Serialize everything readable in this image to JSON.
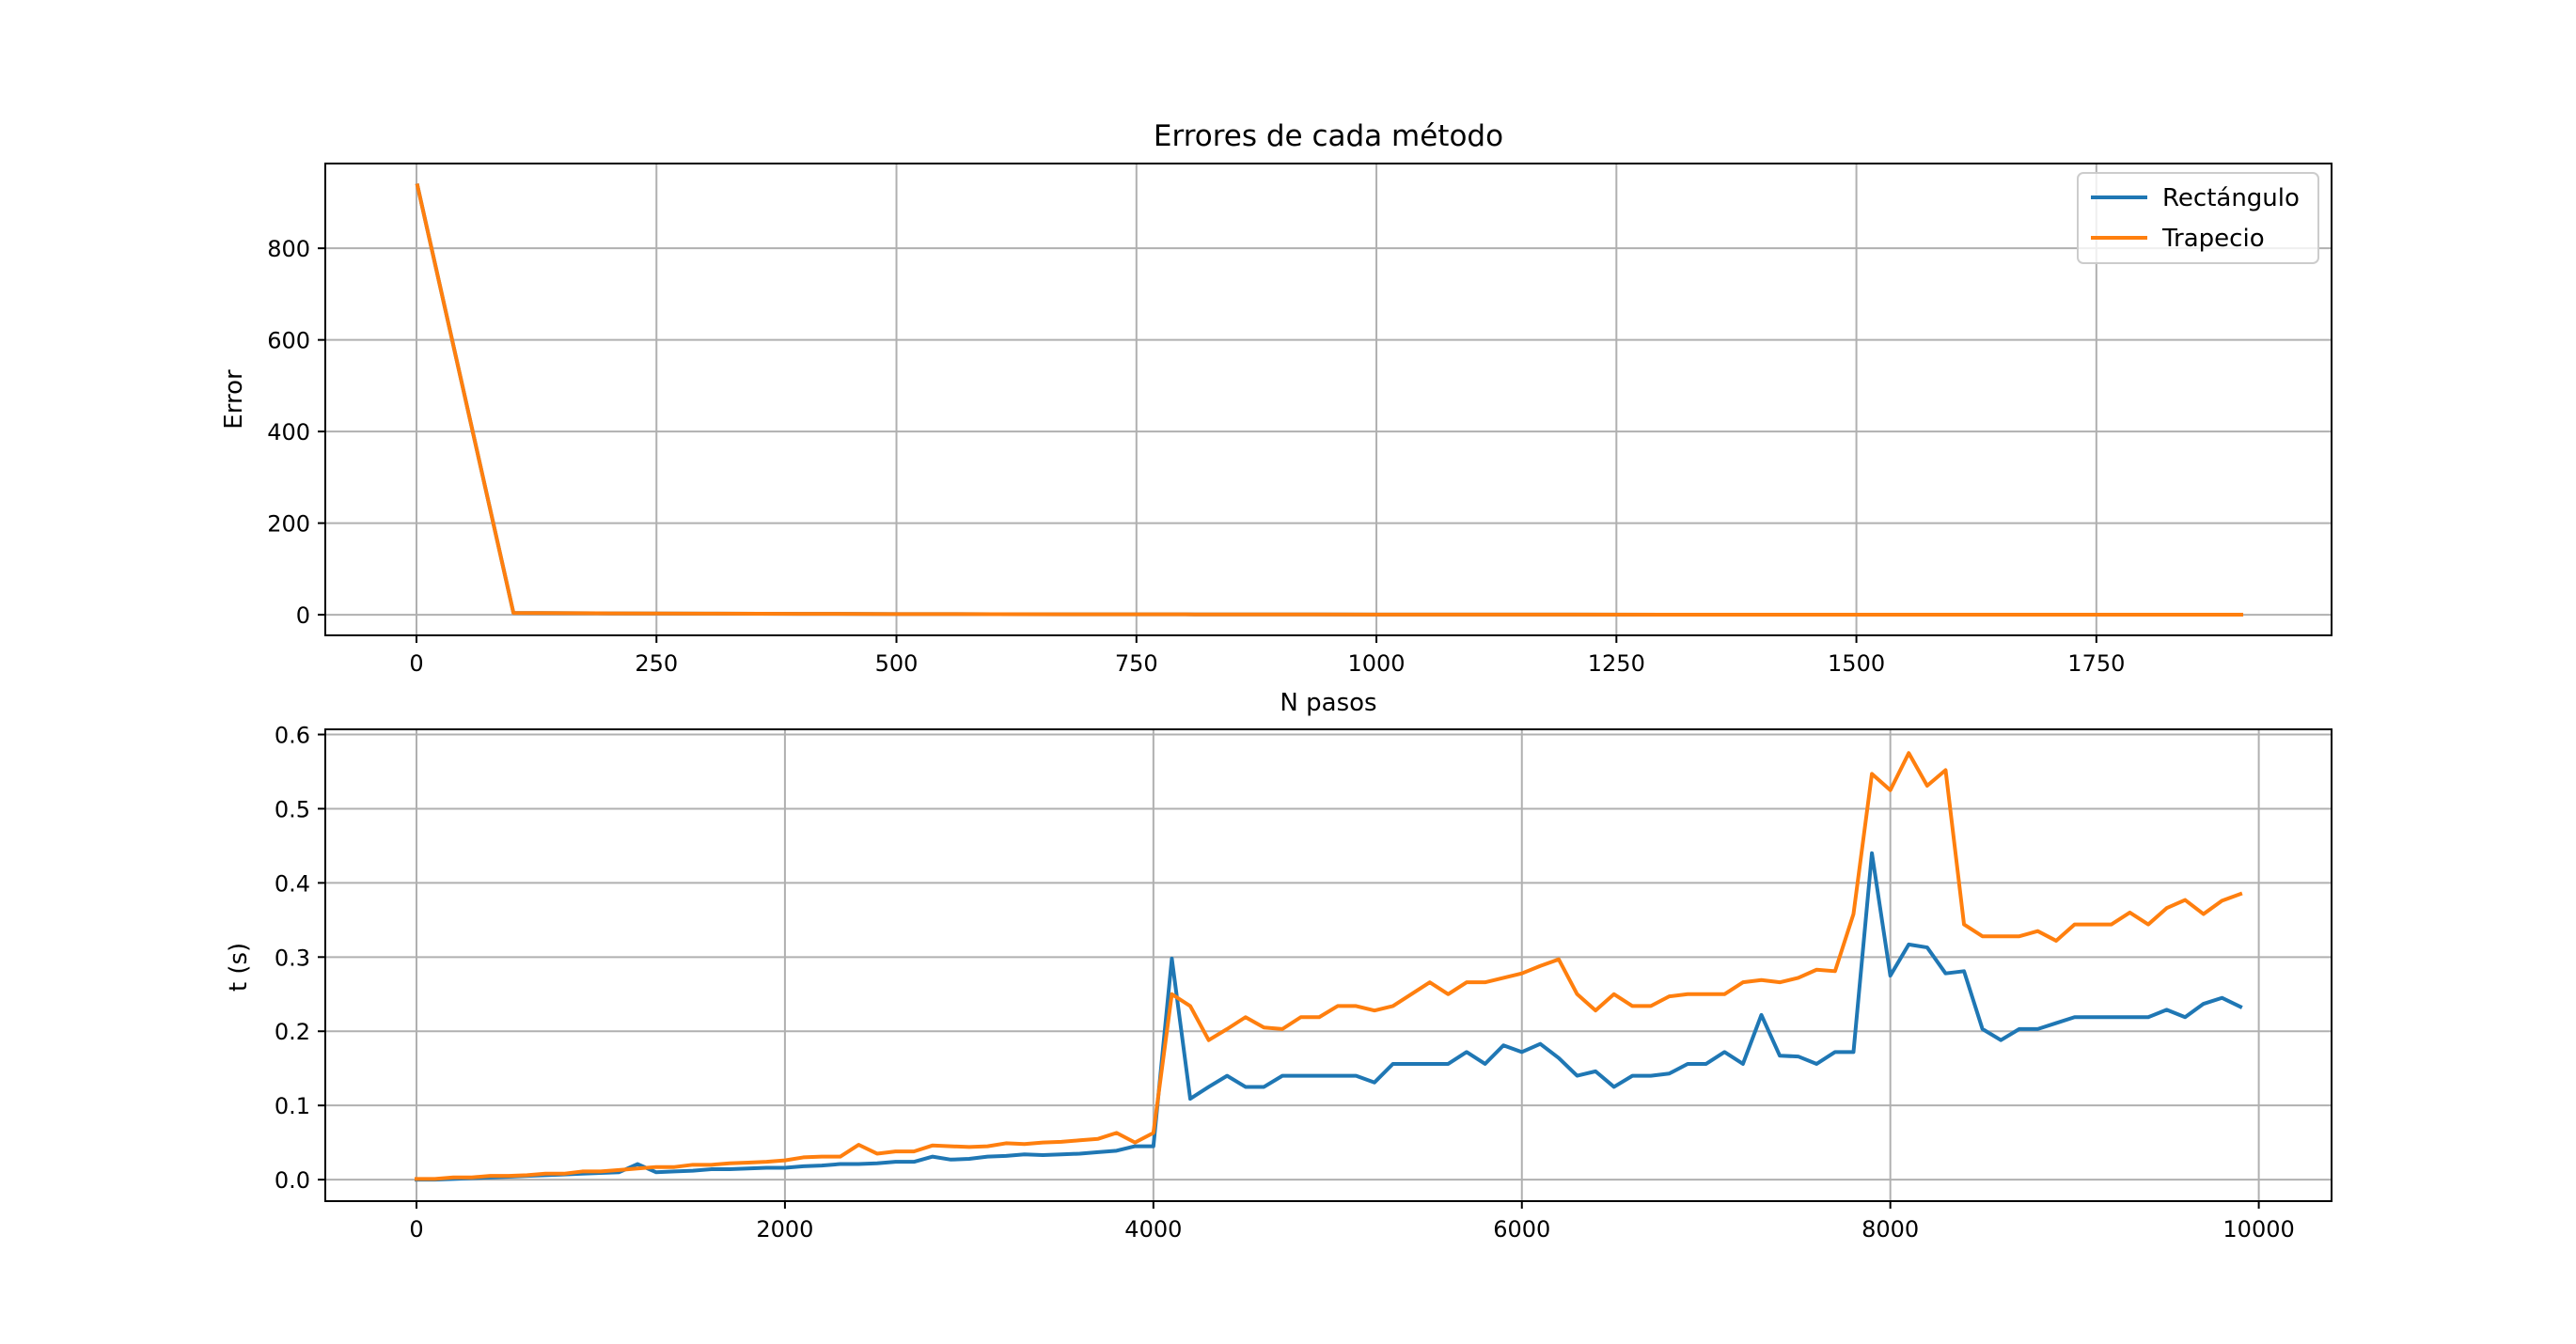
{
  "chart_data": [
    {
      "type": "line",
      "title": "Errores de cada método",
      "xlabel": "N pasos",
      "ylabel": "Error",
      "xlim": [
        -95,
        1995
      ],
      "ylim": [
        -45,
        985
      ],
      "xticks": [
        0,
        250,
        500,
        750,
        1000,
        1250,
        1500,
        1750
      ],
      "yticks": [
        0,
        200,
        400,
        600,
        800
      ],
      "grid": true,
      "legend": "top-right",
      "series": [
        {
          "name": "Rectángulo",
          "color": "#1f77b4",
          "x": [
            1,
            101,
            201,
            301,
            401,
            501,
            601,
            701,
            801,
            901,
            1001,
            1101,
            1201,
            1301,
            1401,
            1501,
            1601,
            1701,
            1801,
            1901
          ],
          "y": [
            937,
            4,
            3,
            2.5,
            2,
            1.5,
            1.2,
            1,
            0.8,
            0.6,
            0.5,
            0.4,
            0.3,
            0.25,
            0.2,
            0.15,
            0.1,
            0.1,
            0.05,
            0.05
          ]
        },
        {
          "name": "Trapecio",
          "color": "#ff7f0e",
          "x": [
            1,
            101,
            201,
            301,
            401,
            501,
            601,
            701,
            801,
            901,
            1001,
            1101,
            1201,
            1301,
            1401,
            1501,
            1601,
            1701,
            1801,
            1901
          ],
          "y": [
            937,
            4,
            3,
            2.5,
            2,
            1.5,
            1.2,
            1,
            0.8,
            0.6,
            0.5,
            0.4,
            0.3,
            0.25,
            0.2,
            0.15,
            0.1,
            0.1,
            0.05,
            0.05
          ]
        }
      ]
    },
    {
      "type": "line",
      "title": "",
      "xlabel": "",
      "ylabel": "t (s)",
      "xlim": [
        -495,
        10395
      ],
      "ylim": [
        -0.029,
        0.607
      ],
      "xticks": [
        0,
        2000,
        4000,
        6000,
        8000,
        10000
      ],
      "yticks": [
        0.0,
        0.1,
        0.2,
        0.3,
        0.4,
        0.5,
        0.6
      ],
      "grid": true,
      "series": [
        {
          "name": "Rectángulo",
          "color": "#1f77b4",
          "x": [
            0,
            100,
            200,
            300,
            400,
            500,
            600,
            700,
            800,
            900,
            1000,
            1100,
            1200,
            1300,
            1400,
            1500,
            1600,
            1700,
            1800,
            1900,
            2000,
            2100,
            2200,
            2300,
            2400,
            2500,
            2600,
            2700,
            2800,
            2900,
            3000,
            3100,
            3200,
            3300,
            3400,
            3500,
            3600,
            3700,
            3800,
            3900,
            4000,
            4100,
            4200,
            4300,
            4400,
            4500,
            4600,
            4700,
            4800,
            4900,
            5000,
            5100,
            5200,
            5300,
            5400,
            5500,
            5600,
            5700,
            5800,
            5900,
            6000,
            6100,
            6200,
            6300,
            6400,
            6500,
            6600,
            6700,
            6800,
            6900,
            7000,
            7100,
            7200,
            7300,
            7400,
            7500,
            7600,
            7700,
            7800,
            7900,
            8000,
            8100,
            8200,
            8300,
            8400,
            8500,
            8600,
            8700,
            8800,
            8900,
            9000,
            9100,
            9200,
            9300,
            9400,
            9500,
            9600,
            9700,
            9800,
            9900
          ],
          "y": [
            0.0,
            0.0,
            0.001,
            0.002,
            0.003,
            0.004,
            0.005,
            0.006,
            0.007,
            0.008,
            0.009,
            0.01,
            0.021,
            0.01,
            0.011,
            0.012,
            0.014,
            0.014,
            0.015,
            0.016,
            0.016,
            0.018,
            0.019,
            0.021,
            0.021,
            0.022,
            0.024,
            0.024,
            0.031,
            0.027,
            0.028,
            0.031,
            0.032,
            0.034,
            0.033,
            0.034,
            0.035,
            0.037,
            0.039,
            0.045,
            0.045,
            0.298,
            0.109,
            0.125,
            0.14,
            0.125,
            0.125,
            0.14,
            0.14,
            0.14,
            0.14,
            0.14,
            0.131,
            0.156,
            0.156,
            0.156,
            0.156,
            0.172,
            0.156,
            0.181,
            0.172,
            0.183,
            0.164,
            0.14,
            0.146,
            0.125,
            0.14,
            0.14,
            0.143,
            0.156,
            0.156,
            0.172,
            0.156,
            0.222,
            0.167,
            0.166,
            0.156,
            0.172,
            0.172,
            0.44,
            0.275,
            0.317,
            0.313,
            0.278,
            0.281,
            0.203,
            0.188,
            0.203,
            0.203,
            0.211,
            0.219,
            0.219,
            0.219,
            0.219,
            0.219,
            0.229,
            0.219,
            0.237,
            0.245,
            0.233
          ]
        },
        {
          "name": "Trapecio",
          "color": "#ff7f0e",
          "x": [
            0,
            100,
            200,
            300,
            400,
            500,
            600,
            700,
            800,
            900,
            1000,
            1100,
            1200,
            1300,
            1400,
            1500,
            1600,
            1700,
            1800,
            1900,
            2000,
            2100,
            2200,
            2300,
            2400,
            2500,
            2600,
            2700,
            2800,
            2900,
            3000,
            3100,
            3200,
            3300,
            3400,
            3500,
            3600,
            3700,
            3800,
            3900,
            4000,
            4100,
            4200,
            4300,
            4400,
            4500,
            4600,
            4700,
            4800,
            4900,
            5000,
            5100,
            5200,
            5300,
            5400,
            5500,
            5600,
            5700,
            5800,
            5900,
            6000,
            6100,
            6200,
            6300,
            6400,
            6500,
            6600,
            6700,
            6800,
            6900,
            7000,
            7100,
            7200,
            7300,
            7400,
            7500,
            7600,
            7700,
            7800,
            7900,
            8000,
            8100,
            8200,
            8300,
            8400,
            8500,
            8600,
            8700,
            8800,
            8900,
            9000,
            9100,
            9200,
            9300,
            9400,
            9500,
            9600,
            9700,
            9800,
            9900
          ],
          "y": [
            0.001,
            0.001,
            0.003,
            0.003,
            0.005,
            0.005,
            0.006,
            0.008,
            0.008,
            0.011,
            0.011,
            0.013,
            0.015,
            0.017,
            0.017,
            0.02,
            0.02,
            0.022,
            0.023,
            0.024,
            0.026,
            0.03,
            0.031,
            0.031,
            0.047,
            0.035,
            0.038,
            0.038,
            0.046,
            0.045,
            0.044,
            0.045,
            0.049,
            0.048,
            0.05,
            0.051,
            0.053,
            0.055,
            0.063,
            0.05,
            0.063,
            0.25,
            0.234,
            0.188,
            0.203,
            0.219,
            0.205,
            0.203,
            0.219,
            0.219,
            0.234,
            0.234,
            0.228,
            0.234,
            0.25,
            0.266,
            0.25,
            0.266,
            0.266,
            0.272,
            0.278,
            0.288,
            0.297,
            0.25,
            0.228,
            0.25,
            0.234,
            0.234,
            0.247,
            0.25,
            0.25,
            0.25,
            0.266,
            0.269,
            0.266,
            0.272,
            0.283,
            0.281,
            0.358,
            0.547,
            0.525,
            0.575,
            0.531,
            0.552,
            0.344,
            0.328,
            0.328,
            0.328,
            0.335,
            0.322,
            0.344,
            0.344,
            0.344,
            0.36,
            0.344,
            0.366,
            0.377,
            0.358,
            0.376,
            0.385
          ]
        }
      ]
    }
  ]
}
